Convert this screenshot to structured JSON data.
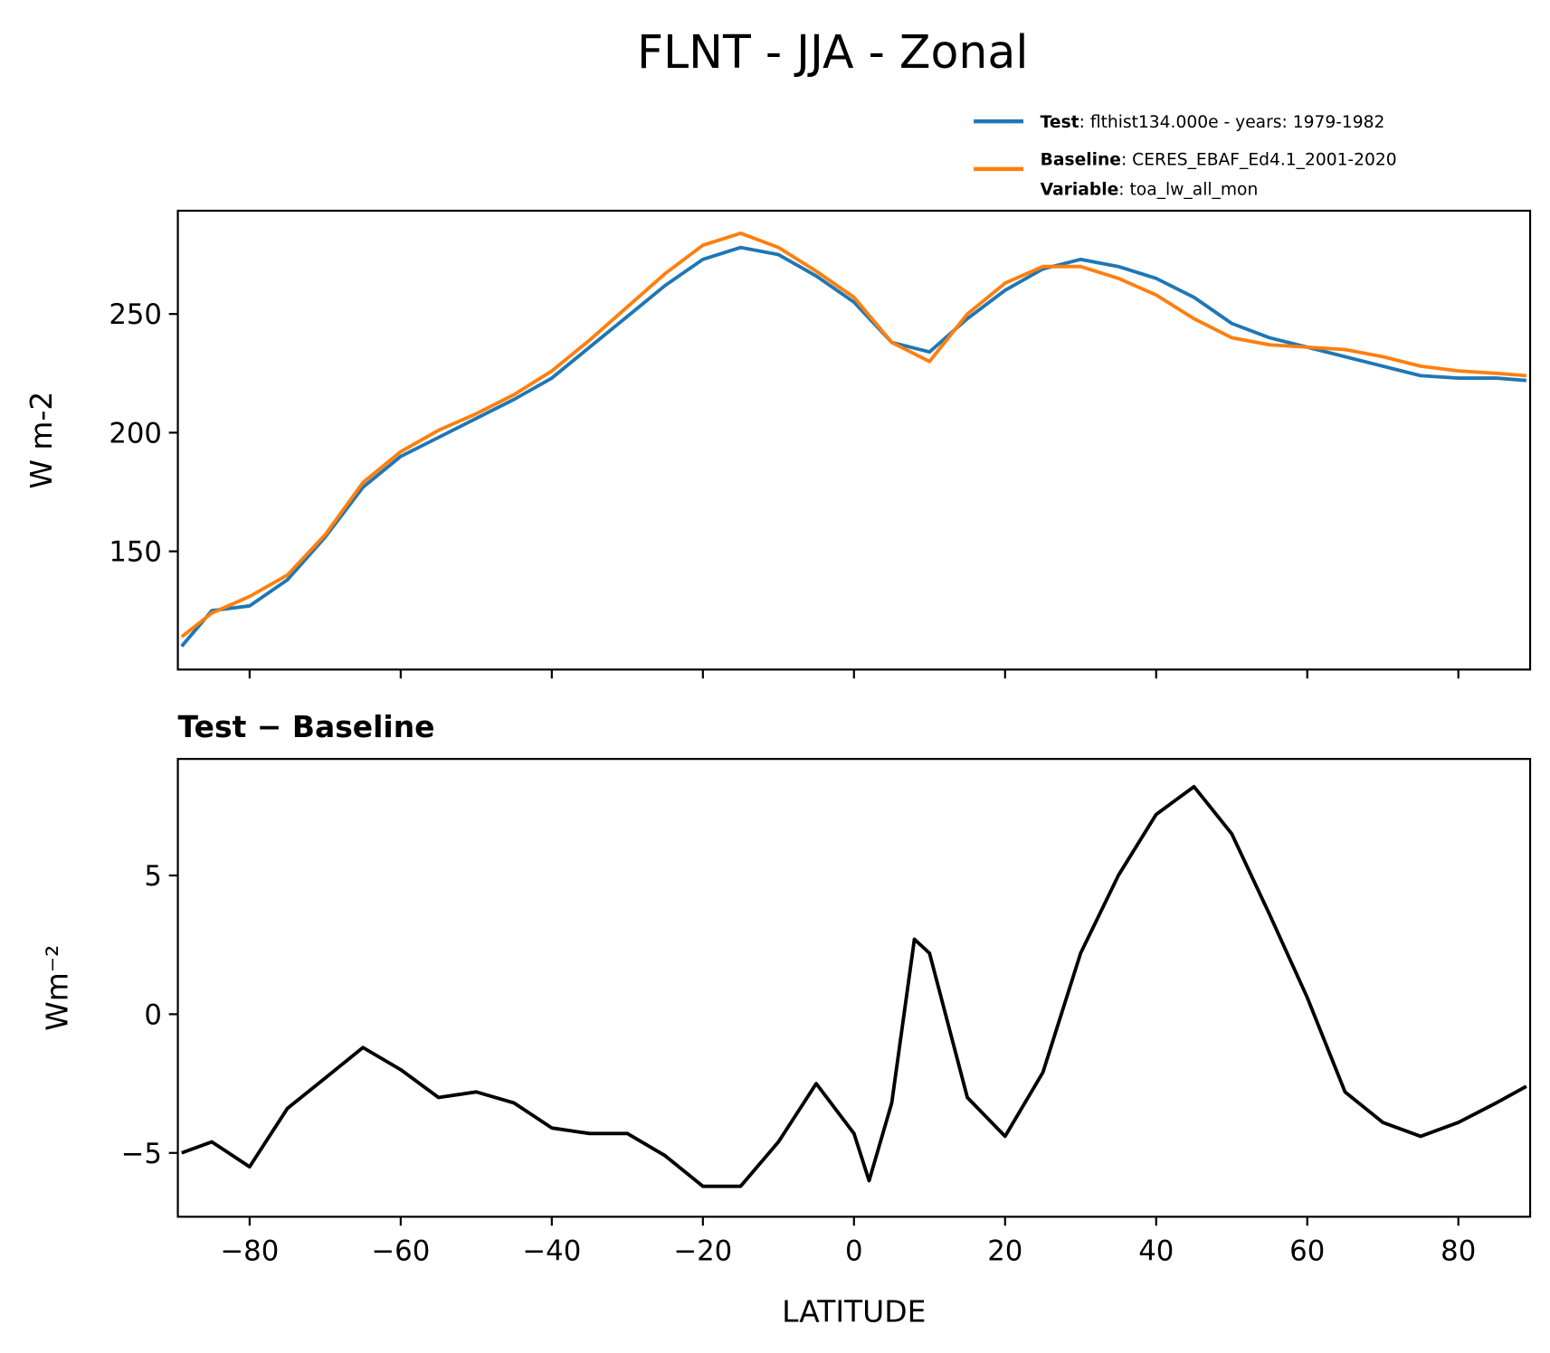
{
  "title": "FLNT - JJA - Zonal",
  "chart_data": [
    {
      "type": "line",
      "ylabel": "W m-2",
      "x": [
        -89,
        -85,
        -80,
        -75,
        -70,
        -65,
        -60,
        -55,
        -50,
        -45,
        -40,
        -35,
        -30,
        -25,
        -20,
        -15,
        -10,
        -5,
        0,
        5,
        10,
        15,
        20,
        25,
        30,
        35,
        40,
        45,
        50,
        55,
        60,
        65,
        70,
        75,
        80,
        85,
        89
      ],
      "series": [
        {
          "name": "Test",
          "label": ": flthist134.000e - years: 1979-1982",
          "color": "#1f77b4",
          "values": [
            110,
            125,
            127,
            138,
            156,
            177,
            190,
            198,
            206,
            214,
            223,
            236,
            249,
            262,
            273,
            278,
            275,
            266,
            255,
            238,
            234,
            248,
            260,
            269,
            273,
            270,
            265,
            257,
            246,
            240,
            236,
            232,
            228,
            224,
            223,
            223,
            222
          ]
        },
        {
          "name": "Baseline",
          "label": ": CERES_EBAF_Ed4.1_2001-2020",
          "extra_name": "Variable",
          "extra_label": ": toa_lw_all_mon",
          "color": "#ff7f0e",
          "values": [
            114,
            124,
            131,
            140,
            157,
            179,
            192,
            201,
            208,
            216,
            226,
            239,
            253,
            267,
            279,
            284,
            278,
            268,
            257,
            238,
            230,
            250,
            263,
            270,
            270,
            265,
            258,
            248,
            240,
            237,
            236,
            235,
            232,
            228,
            226,
            225,
            224
          ]
        }
      ],
      "xlim": [
        -89.5,
        89.5
      ],
      "ylim": [
        100.2,
        293.5
      ],
      "xticks": [
        -80,
        -60,
        -40,
        -20,
        0,
        20,
        40,
        60,
        80
      ],
      "yticks": [
        150,
        200,
        250
      ]
    },
    {
      "type": "line",
      "title": "Test − Baseline",
      "ylabel": "Wm⁻²",
      "xlabel": "LATITUDE",
      "x": [
        -89,
        -85,
        -80,
        -75,
        -70,
        -65,
        -60,
        -55,
        -50,
        -45,
        -40,
        -35,
        -30,
        -25,
        -20,
        -15,
        -10,
        -5,
        0,
        2,
        5,
        8,
        10,
        15,
        20,
        25,
        30,
        35,
        40,
        45,
        50,
        55,
        60,
        65,
        70,
        75,
        80,
        85,
        89
      ],
      "series": [
        {
          "name": "Test − Baseline",
          "color": "#000000",
          "values": [
            -5.0,
            -4.6,
            -5.5,
            -3.4,
            -2.3,
            -1.2,
            -2.0,
            -3.0,
            -2.8,
            -3.2,
            -4.1,
            -4.3,
            -4.3,
            -5.1,
            -6.2,
            -6.2,
            -4.6,
            -2.5,
            -4.3,
            -6.0,
            -3.2,
            2.7,
            2.2,
            -3.0,
            -4.4,
            -2.1,
            2.2,
            5.0,
            7.2,
            8.2,
            6.5,
            3.6,
            0.6,
            -2.8,
            -3.9,
            -4.4,
            -3.9,
            -3.2,
            -2.6
          ]
        }
      ],
      "xlim": [
        -89.5,
        89.5
      ],
      "ylim": [
        -7.3,
        9.2
      ],
      "xticks": [
        {
          "value": -80,
          "label": "−80"
        },
        {
          "value": -60,
          "label": "−60"
        },
        {
          "value": -40,
          "label": "−40"
        },
        {
          "value": -20,
          "label": "−20"
        },
        0,
        20,
        40,
        60,
        80
      ],
      "yticks": [
        {
          "value": -5,
          "label": "−5"
        },
        0,
        5
      ]
    }
  ]
}
